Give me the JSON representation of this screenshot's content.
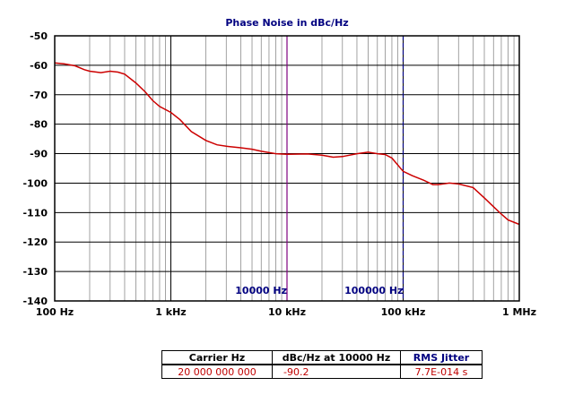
{
  "chart_data": {
    "type": "line",
    "title": "Phase Noise in dBc/Hz",
    "x_scale": "log",
    "xlim": [
      100,
      1000000
    ],
    "ylim": [
      -140,
      -50
    ],
    "x_tick_labels": [
      "100 Hz",
      "1 kHz",
      "10 kHz",
      "100 kHz",
      "1 MHz"
    ],
    "y_tick_labels": [
      "-50",
      "-60",
      "-70",
      "-80",
      "-90",
      "-100",
      "-110",
      "-120",
      "-130",
      "-140"
    ],
    "grid": true,
    "series_color": "#cc0000",
    "markers": [
      {
        "label": "10000 Hz",
        "x": 10000,
        "style": "solid",
        "color": "#800080"
      },
      {
        "label": "100000 Hz",
        "x": 100000,
        "style": "dashed",
        "color": "#000080"
      }
    ],
    "x": [
      100,
      120,
      150,
      180,
      200,
      250,
      300,
      350,
      400,
      500,
      600,
      700,
      800,
      1000,
      1200,
      1500,
      2000,
      2500,
      3000,
      4000,
      5000,
      6000,
      8000,
      10000,
      15000,
      20000,
      25000,
      30000,
      40000,
      50000,
      60000,
      70000,
      80000,
      100000,
      120000,
      150000,
      180000,
      200000,
      250000,
      300000,
      400000,
      500000,
      600000,
      700000,
      800000,
      1000000
    ],
    "y": [
      -59.2,
      -59.5,
      -60.2,
      -61.5,
      -62,
      -62.5,
      -62,
      -62.3,
      -63,
      -66,
      -69,
      -72,
      -74,
      -76,
      -78.5,
      -82.5,
      -85.5,
      -87,
      -87.5,
      -88,
      -88.5,
      -89.2,
      -90,
      -90.2,
      -90.1,
      -90.5,
      -91.2,
      -91,
      -90,
      -89.5,
      -90,
      -90.3,
      -91.5,
      -96,
      -97.5,
      -99,
      -100.5,
      -100.5,
      -100,
      -100.3,
      -101.5,
      -105,
      -108,
      -110.5,
      -112.5,
      -114
    ]
  },
  "table": {
    "headers": [
      "Carrier Hz",
      "dBc/Hz at 10000 Hz",
      "RMS Jitter"
    ],
    "values": [
      "20 000 000 000",
      "-90.2",
      "7.7E-014 s"
    ]
  }
}
